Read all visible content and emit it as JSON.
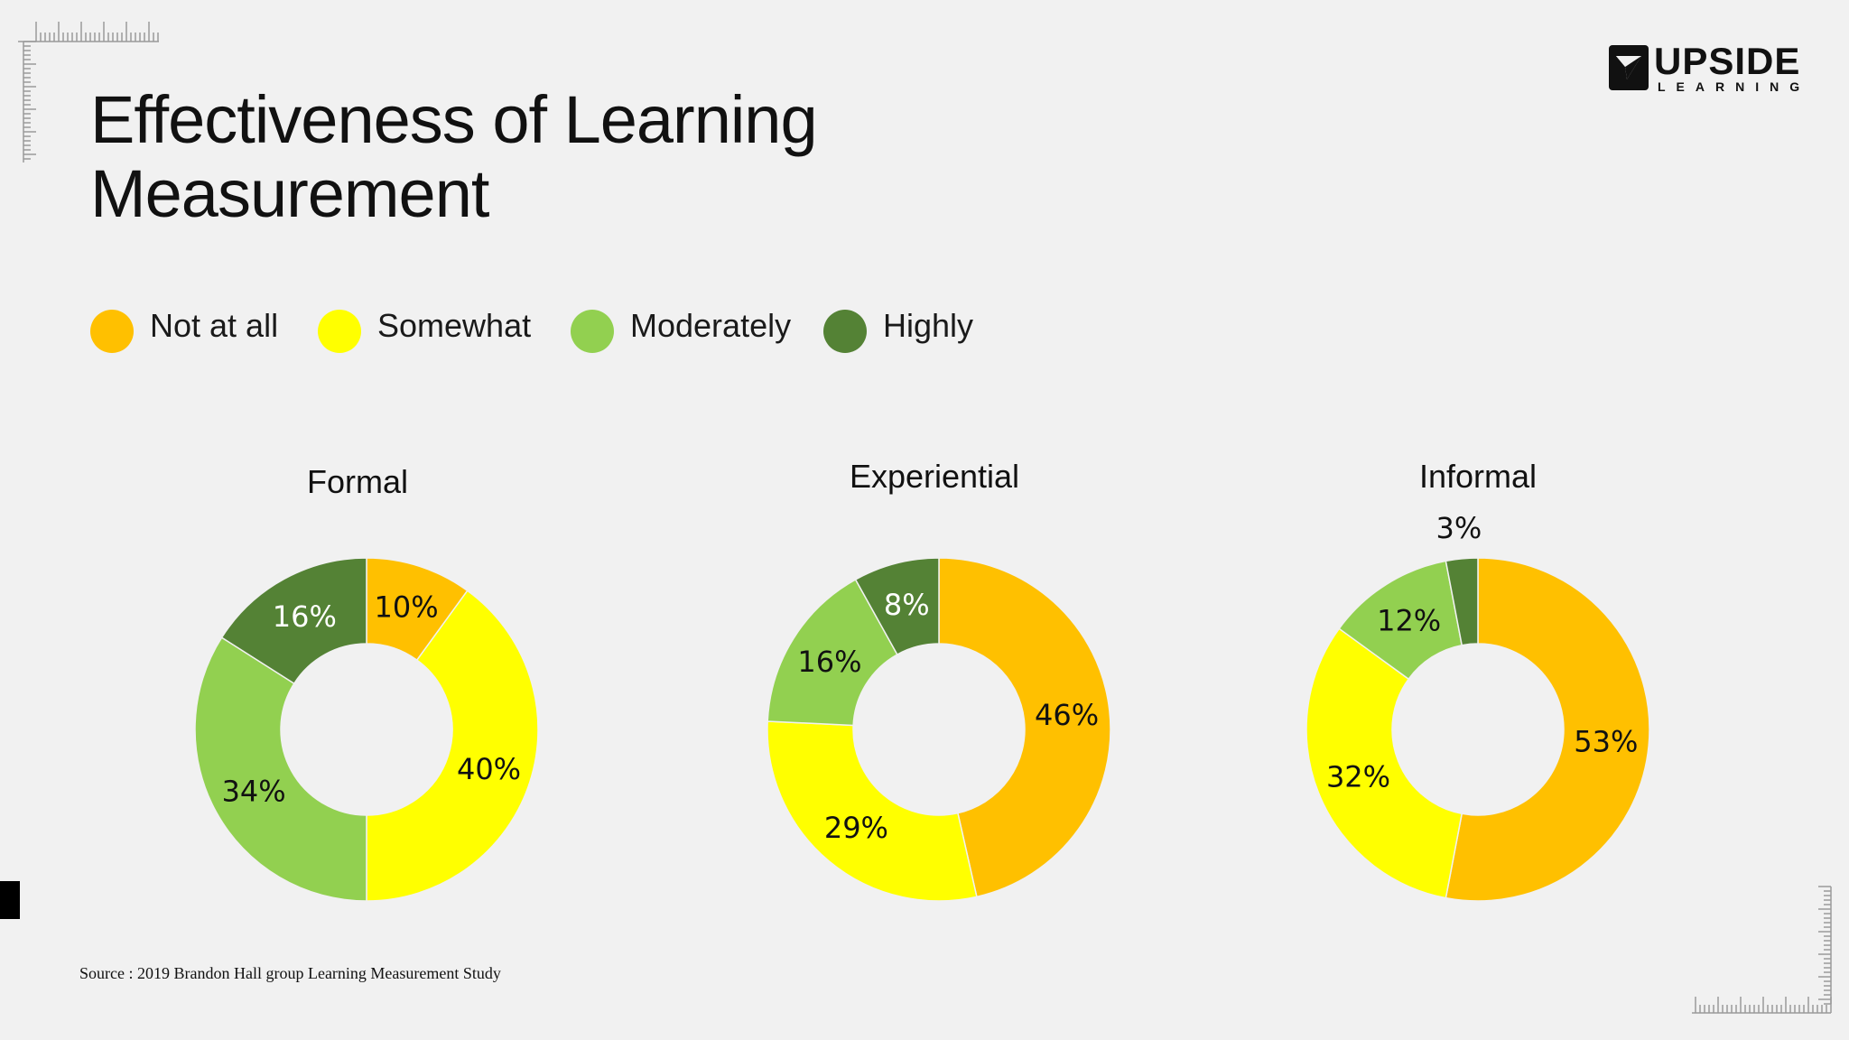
{
  "title_lines": [
    "Effectiveness of Learning",
    "Measurement"
  ],
  "logo": {
    "word": "UPSIDE",
    "sub": "LEARNING"
  },
  "legend": [
    {
      "label": "Not at all",
      "color": "#FFC000"
    },
    {
      "label": "Somewhat",
      "color": "#FFFF00"
    },
    {
      "label": "Moderately",
      "color": "#92D050"
    },
    {
      "label": "Highly",
      "color": "#548235"
    }
  ],
  "source": "Source : 2019 Brandon Hall group Learning Measurement Study",
  "chart_data": [
    {
      "type": "pie",
      "title": "Formal",
      "categories": [
        "Not at all",
        "Somewhat",
        "Moderately",
        "Highly"
      ],
      "values": [
        10,
        40,
        34,
        16
      ],
      "labels": [
        "10%",
        "40%",
        "34%",
        "16%"
      ]
    },
    {
      "type": "pie",
      "title": "Experiential",
      "categories": [
        "Not at all",
        "Somewhat",
        "Moderately",
        "Highly"
      ],
      "values": [
        46,
        29,
        16,
        8
      ],
      "labels": [
        "46%",
        "29%",
        "16%",
        "8%"
      ]
    },
    {
      "type": "pie",
      "title": "Informal",
      "categories": [
        "Not at all",
        "Somewhat",
        "Moderately",
        "Highly"
      ],
      "values": [
        53,
        32,
        12,
        3
      ],
      "labels": [
        "53%",
        "32%",
        "12%",
        "3%"
      ]
    }
  ]
}
